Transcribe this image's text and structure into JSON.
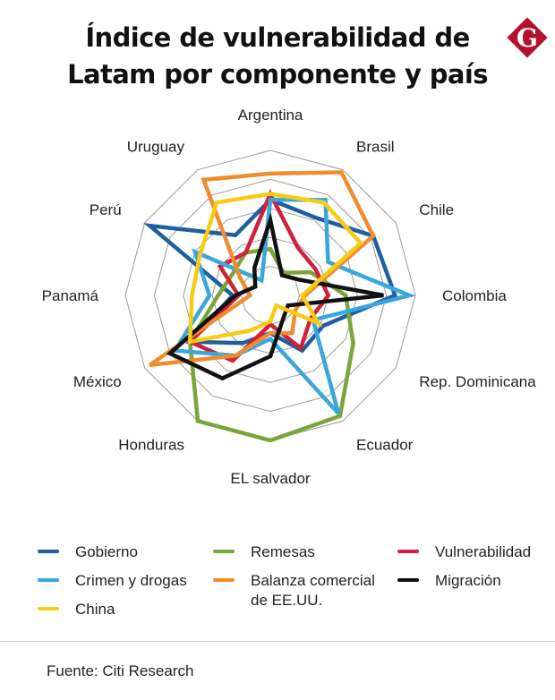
{
  "header": {
    "title_line1": "Índice de vulnerabilidad de",
    "title_line2": "Latam por componente y país",
    "logo_letter": "G",
    "logo_color": "#b3122e"
  },
  "chart_data": {
    "type": "radar",
    "rmax": 5,
    "rings": [
      1,
      2,
      3,
      4,
      5
    ],
    "grid": true,
    "categories": [
      "Argentina",
      "Brasil",
      "Chile",
      "Colombia",
      "Rep. Dominicana",
      "Ecuador",
      "EL salvador",
      "Honduras",
      "México",
      "Panamá",
      "Perú",
      "Uruguay"
    ],
    "series": [
      {
        "name": "Gobierno",
        "color": "#1f5f9f",
        "values": [
          3.3,
          3.1,
          4.1,
          4.3,
          2.1,
          2.2,
          1.3,
          1.9,
          3.2,
          1.3,
          4.8,
          2.4
        ]
      },
      {
        "name": "Remesas",
        "color": "#7ba53b",
        "values": [
          1.6,
          0.9,
          1.6,
          2.6,
          3.3,
          4.8,
          5.0,
          5.0,
          3.2,
          1.8,
          1.5,
          1.7
        ]
      },
      {
        "name": "Vulnerabilidad",
        "color": "#d21f3c",
        "values": [
          3.5,
          1.9,
          1.8,
          2.0,
          1.6,
          2.1,
          1.0,
          2.6,
          3.2,
          1.1,
          2.0,
          1.7
        ]
      },
      {
        "name": "Crimen y drogas",
        "color": "#39a6dc",
        "values": [
          3.3,
          3.8,
          2.3,
          4.8,
          1.7,
          4.7,
          1.5,
          2.4,
          3.8,
          2.1,
          3.0,
          0.6
        ]
      },
      {
        "name": "Balanza comercial de EE.UU.",
        "color": "#ef8d2e",
        "values": [
          4.2,
          4.9,
          4.1,
          1.2,
          1.0,
          1.5,
          1.3,
          2.4,
          4.8,
          0.7,
          1.2,
          4.6
        ]
      },
      {
        "name": "Migración",
        "color": "#111111",
        "values": [
          2.6,
          0.8,
          1.1,
          3.9,
          0.7,
          0.9,
          2.1,
          3.3,
          4.0,
          1.2,
          0.6,
          1.1
        ]
      },
      {
        "name": "China",
        "color": "#f7cb16",
        "values": [
          3.5,
          3.7,
          3.6,
          1.1,
          1.9,
          0.4,
          0.9,
          1.4,
          3.2,
          2.7,
          2.8,
          3.7
        ]
      }
    ]
  },
  "source": "Fuente: Citi Research"
}
